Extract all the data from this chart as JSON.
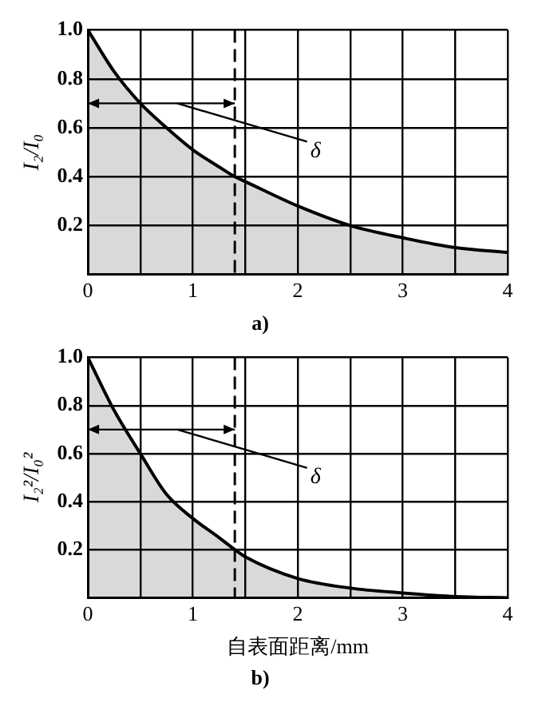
{
  "chart_data": [
    {
      "type": "area",
      "title": "a)",
      "ylabel": "I₂/I₀",
      "x": [
        0,
        0.25,
        0.5,
        0.75,
        1,
        1.25,
        1.4,
        1.5,
        2,
        2.5,
        3,
        3.5,
        4
      ],
      "series": [
        {
          "color": "#000000",
          "values": [
            1,
            0.83,
            0.7,
            0.6,
            0.51,
            0.44,
            0.4,
            0.38,
            0.28,
            0.2,
            0.15,
            0.11,
            0.09
          ]
        }
      ],
      "xlim": [
        0,
        4
      ],
      "xticks": [
        0,
        {
          "value": 0.5,
          "label": null
        },
        1,
        {
          "value": 1.5,
          "label": null
        },
        2,
        {
          "value": 2.5,
          "label": null
        },
        3,
        {
          "value": 3.5,
          "label": null
        },
        4
      ],
      "ylim": [
        0,
        1
      ],
      "yticks": [
        0.2,
        0.4,
        0.6,
        0.8,
        {
          "value": 1,
          "label": "1.0"
        }
      ],
      "ref_lines": [
        {
          "axis": "x",
          "value": 1.4,
          "label": "δ",
          "line_style": "dashed"
        }
      ],
      "grid": true,
      "marker": "none",
      "line_style": "solid"
    },
    {
      "type": "area",
      "title": "b)",
      "xlabel": "自表面距离/mm",
      "ylabel": "I₂²/I₀²",
      "x": [
        0,
        0.25,
        0.5,
        0.75,
        1,
        1.25,
        1.4,
        1.5,
        2,
        2.5,
        3,
        3.5,
        4
      ],
      "series": [
        {
          "color": "#000000",
          "values": [
            1,
            0.78,
            0.6,
            0.43,
            0.33,
            0.25,
            0.2,
            0.17,
            0.08,
            0.04,
            0.02,
            0.005,
            0
          ]
        }
      ],
      "xlim": [
        0,
        4
      ],
      "xticks": [
        0,
        {
          "value": 0.5,
          "label": null
        },
        1,
        {
          "value": 1.5,
          "label": null
        },
        2,
        {
          "value": 2.5,
          "label": null
        },
        3,
        {
          "value": 3.5,
          "label": null
        },
        4
      ],
      "ylim": [
        0,
        1
      ],
      "yticks": [
        0.2,
        0.4,
        0.6,
        0.8,
        {
          "value": 1,
          "label": "1.0"
        }
      ],
      "ref_lines": [
        {
          "axis": "x",
          "value": 1.4,
          "label": "δ",
          "line_style": "dashed"
        }
      ],
      "grid": true,
      "marker": "none",
      "line_style": "solid"
    }
  ]
}
